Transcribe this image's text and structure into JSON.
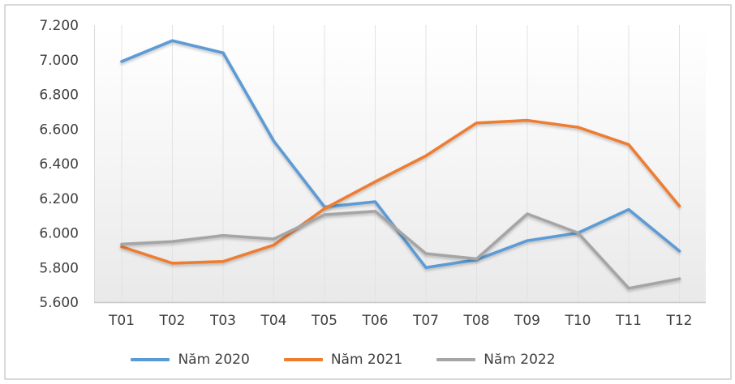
{
  "chart_data": {
    "type": "line",
    "title": "",
    "xlabel": "",
    "ylabel": "",
    "categories": [
      "T01",
      "T02",
      "T03",
      "T04",
      "T05",
      "T06",
      "T07",
      "T08",
      "T09",
      "T10",
      "T11",
      "T12"
    ],
    "series": [
      {
        "name": "Năm 2020",
        "color": "#5b9bd5",
        "values": [
          6990,
          7110,
          7040,
          6530,
          6150,
          6180,
          5800,
          5845,
          5955,
          6000,
          6135,
          5895
        ]
      },
      {
        "name": "Năm 2021",
        "color": "#ed7d31",
        "values": [
          5920,
          5825,
          5835,
          5930,
          6140,
          6295,
          6445,
          6635,
          6650,
          6610,
          6510,
          6155
        ]
      },
      {
        "name": "Năm 2022",
        "color": "#a5a5a5",
        "values": [
          5935,
          5950,
          5985,
          5965,
          6105,
          6125,
          5880,
          5850,
          6110,
          6000,
          5680,
          5735
        ]
      }
    ],
    "y_axis": {
      "min": 5600,
      "max": 7200,
      "step": 200,
      "tick_labels": [
        "5.600",
        "5.800",
        "6.000",
        "6.200",
        "6.400",
        "6.600",
        "6.800",
        "7.000",
        "7.200"
      ]
    },
    "x_axis": {
      "tick_labels": [
        "T01",
        "T02",
        "T03",
        "T04",
        "T05",
        "T06",
        "T07",
        "T08",
        "T09",
        "T10",
        "T11",
        "T12"
      ]
    },
    "legend_position": "bottom",
    "grid": "vertical",
    "colors": {
      "gridline": "#e2e2e2",
      "axis_line": "#c6c6c6",
      "tick_text": "#3f3f3f"
    }
  }
}
